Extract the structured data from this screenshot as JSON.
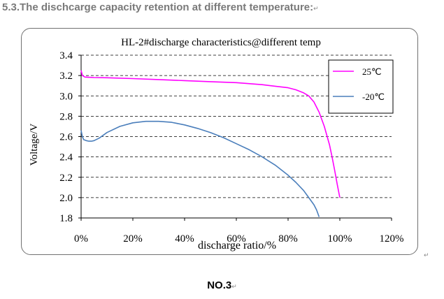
{
  "page": {
    "heading": "5.3.The dischcarge capacity retention at different temperature:",
    "heading_mark": "↵",
    "caption": "NO.3",
    "caption_mark": "↵",
    "return_mark": "↵"
  },
  "chart_data": {
    "type": "line",
    "title": "HL-2#discharge characteristics@different temp",
    "xlabel": "discharge ratio/%",
    "ylabel": "Voltage/V",
    "xlim": [
      0,
      120
    ],
    "ylim": [
      1.8,
      3.4
    ],
    "x_ticks": [
      0,
      20,
      40,
      60,
      80,
      100,
      120
    ],
    "x_tick_labels": [
      "0%",
      "20%",
      "40%",
      "60%",
      "80%",
      "100%",
      "120%"
    ],
    "y_ticks": [
      1.8,
      2.0,
      2.2,
      2.4,
      2.6,
      2.8,
      3.0,
      3.2,
      3.4
    ],
    "y_tick_labels": [
      "1.8",
      "2.0",
      "2.2",
      "2.4",
      "2.6",
      "2.8",
      "3.0",
      "3.2",
      "3.4"
    ],
    "grid": "horizontal dashed",
    "legend_position": "top-right",
    "series": [
      {
        "name": "25℃",
        "color": "#ff00ff",
        "x": [
          0,
          0.5,
          1.5,
          5,
          10,
          20,
          30,
          40,
          50,
          60,
          70,
          75,
          80,
          83,
          86,
          88,
          90,
          92,
          94,
          96,
          97,
          98,
          99,
          100
        ],
        "y": [
          3.25,
          3.2,
          3.185,
          3.18,
          3.178,
          3.17,
          3.16,
          3.15,
          3.14,
          3.13,
          3.11,
          3.095,
          3.08,
          3.06,
          3.03,
          3.0,
          2.94,
          2.84,
          2.7,
          2.52,
          2.4,
          2.27,
          2.13,
          2.0
        ]
      },
      {
        "name": "-20℃",
        "color": "#4a7ebb",
        "x": [
          0,
          0.5,
          1,
          2,
          3,
          4,
          5,
          7,
          10,
          15,
          20,
          25,
          30,
          35,
          40,
          45,
          50,
          55,
          60,
          65,
          70,
          75,
          80,
          83,
          86,
          88,
          90,
          91,
          92
        ],
        "y": [
          2.66,
          2.6,
          2.57,
          2.56,
          2.555,
          2.555,
          2.56,
          2.585,
          2.64,
          2.7,
          2.735,
          2.75,
          2.75,
          2.74,
          2.715,
          2.68,
          2.64,
          2.59,
          2.53,
          2.47,
          2.4,
          2.32,
          2.22,
          2.15,
          2.07,
          2.0,
          1.93,
          1.88,
          1.81
        ]
      }
    ]
  }
}
